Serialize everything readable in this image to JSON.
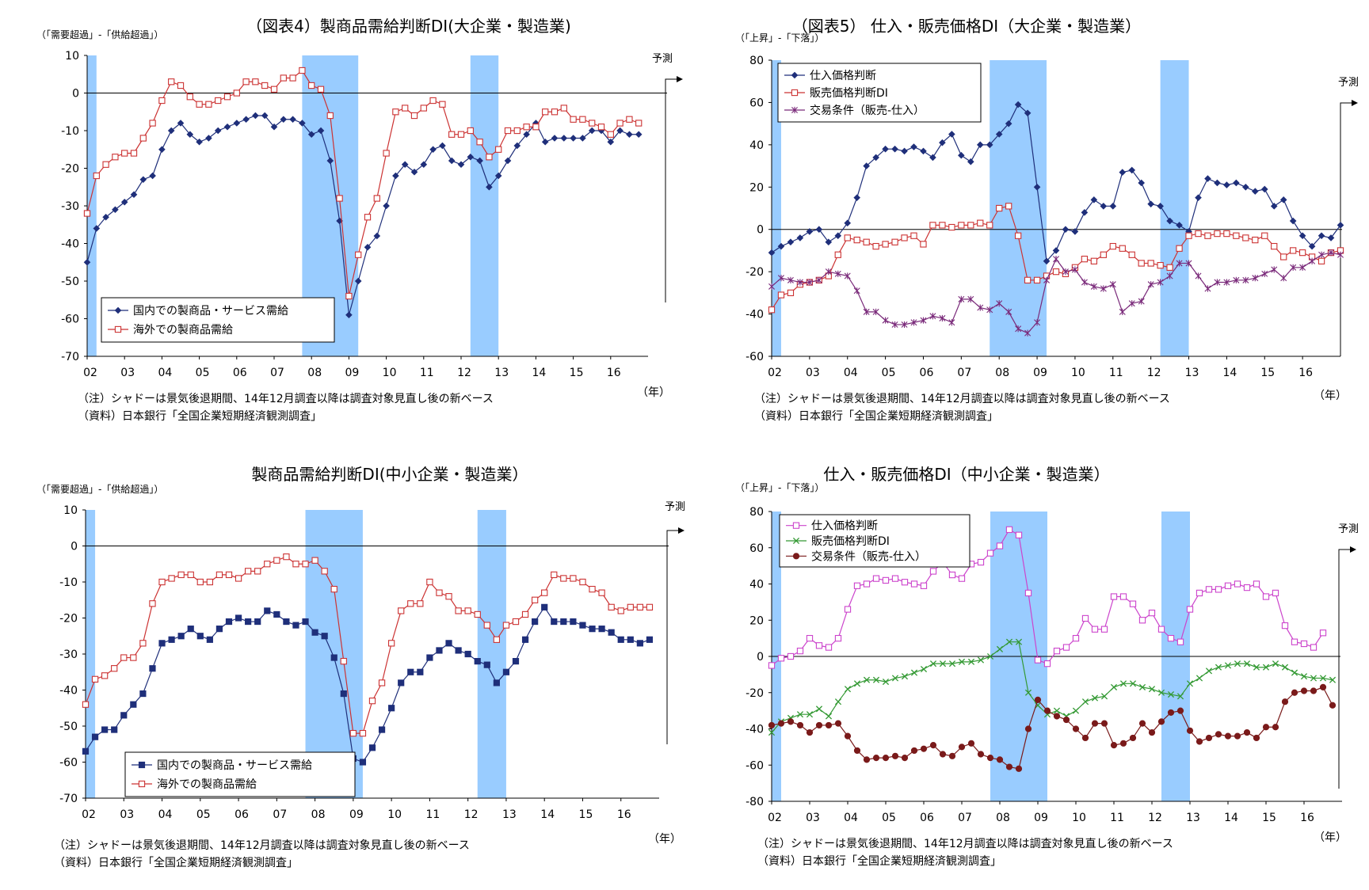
{
  "common": {
    "x_tick_labels": [
      "02",
      "03",
      "04",
      "05",
      "06",
      "07",
      "08",
      "09",
      "10",
      "11",
      "12",
      "13",
      "14",
      "15",
      "16"
    ],
    "year_unit": "（年）",
    "forecast_label": "予測",
    "note": "（注）シャドーは景気後退期間、14年12月調査以降は調査対象見直し後の新ベース",
    "source": "（資料）日本銀行「全国企業短期経済観測調査」",
    "shade_color": "#99ccff",
    "recession_periods": [
      [
        2002.0,
        2002.25
      ],
      [
        2007.75,
        2009.25
      ],
      [
        2012.25,
        2013.0
      ]
    ]
  },
  "chart_data": [
    {
      "type": "line",
      "title": "（図表4）製商品需給判断DI(大企業・製造業)",
      "ylabel": "（「需要超過」-「供給超過」）",
      "ylim": [
        -70,
        10
      ],
      "yticks": [
        10,
        0,
        -10,
        -20,
        -30,
        -40,
        -50,
        -60,
        -70
      ],
      "x_start": 2002.0,
      "x_step": 0.25,
      "legend_position": "bottom-left",
      "series": [
        {
          "name": "国内での製商品・サービス需給",
          "color": "#1f2f7a",
          "marker": "diamond",
          "values": [
            -45,
            -36,
            -33,
            -31,
            -29,
            -27,
            -23,
            -22,
            -15,
            -10,
            -8,
            -11,
            -13,
            -12,
            -10,
            -9,
            -8,
            -7,
            -6,
            -6,
            -9,
            -7,
            -7,
            -8,
            -11,
            -10,
            -18,
            -34,
            -59,
            -50,
            -41,
            -38,
            -30,
            -22,
            -19,
            -21,
            -19,
            -15,
            -14,
            -18,
            -19,
            -17,
            -18,
            -25,
            -22,
            -18,
            -14,
            -11,
            -8,
            -13,
            -12,
            -12,
            -12,
            -12,
            -10,
            -10,
            -13,
            -10,
            -11,
            -11
          ]
        },
        {
          "name": "海外での製商品需給",
          "color": "#cc3333",
          "marker": "square-open",
          "values": [
            -32,
            -22,
            -19,
            -17,
            -16,
            -16,
            -12,
            -8,
            -2,
            3,
            2,
            -1,
            -3,
            -3,
            -2,
            -1,
            0,
            3,
            3,
            2,
            1,
            4,
            4,
            6,
            2,
            1,
            -6,
            -28,
            -54,
            -43,
            -33,
            -28,
            -16,
            -5,
            -4,
            -6,
            -4,
            -2,
            -3,
            -11,
            -11,
            -10,
            -13,
            -17,
            -15,
            -10,
            -10,
            -9,
            -9,
            -5,
            -5,
            -4,
            -7,
            -7,
            -8,
            -9,
            -11,
            -8,
            -7,
            -8
          ]
        }
      ]
    },
    {
      "type": "line",
      "title": "（図表5） 仕入・販売価格DI（大企業・製造業）",
      "ylabel": "（「上昇」-「下落」）",
      "ylim": [
        -60,
        80
      ],
      "yticks": [
        80,
        60,
        40,
        20,
        0,
        -20,
        -40,
        -60
      ],
      "x_start": 2002.0,
      "x_step": 0.25,
      "legend_position": "top-left",
      "series": [
        {
          "name": "仕入価格判断",
          "color": "#1f2f7a",
          "marker": "diamond",
          "values": [
            -11,
            -8,
            -6,
            -4,
            -1,
            0,
            -6,
            -3,
            3,
            15,
            30,
            34,
            38,
            38,
            37,
            39,
            37,
            34,
            41,
            45,
            35,
            32,
            40,
            40,
            45,
            50,
            59,
            55,
            20,
            -15,
            -10,
            0,
            -1,
            8,
            14,
            11,
            11,
            27,
            28,
            22,
            12,
            11,
            4,
            2,
            -1,
            15,
            24,
            22,
            21,
            22,
            20,
            18,
            19,
            11,
            14,
            4,
            -3,
            -8,
            -3,
            -4,
            2
          ]
        },
        {
          "name": "販売価格判断DI",
          "color": "#cc3333",
          "marker": "square-open",
          "values": [
            -38,
            -31,
            -30,
            -26,
            -25,
            -24,
            -22,
            -12,
            -4,
            -5,
            -6,
            -8,
            -7,
            -6,
            -4,
            -3,
            -7,
            2,
            2,
            1,
            2,
            2,
            3,
            2,
            10,
            11,
            -3,
            -24,
            -24,
            -22,
            -20,
            -21,
            -18,
            -14,
            -15,
            -12,
            -8,
            -9,
            -12,
            -16,
            -16,
            -17,
            -18,
            -9,
            -3,
            -2,
            -3,
            -2,
            -2,
            -3,
            -4,
            -5,
            -3,
            -8,
            -13,
            -10,
            -11,
            -13,
            -15,
            -11,
            -10
          ]
        },
        {
          "name": "交易条件（販売-仕入）",
          "color": "#7a2a7a",
          "marker": "star",
          "values": [
            -27,
            -23,
            -24,
            -25,
            -25,
            -24,
            -20,
            -21,
            -22,
            -29,
            -39,
            -39,
            -43,
            -45,
            -45,
            -44,
            -43,
            -41,
            -42,
            -44,
            -33,
            -33,
            -37,
            -38,
            -35,
            -39,
            -47,
            -49,
            -44,
            -24,
            -14,
            -20,
            -19,
            -25,
            -27,
            -28,
            -26,
            -39,
            -35,
            -34,
            -26,
            -25,
            -22,
            -16,
            -16,
            -22,
            -28,
            -25,
            -25,
            -24,
            -24,
            -23,
            -21,
            -19,
            -23,
            -18,
            -18,
            -15,
            -12,
            -11,
            -12
          ]
        }
      ]
    },
    {
      "type": "line",
      "title": "製商品需給判断DI(中小企業・製造業）",
      "ylabel": "（「需要超過」-「供給超過」）",
      "ylim": [
        -70,
        10
      ],
      "yticks": [
        10,
        0,
        -10,
        -20,
        -30,
        -40,
        -50,
        -60,
        -70
      ],
      "x_start": 2002.0,
      "x_step": 0.25,
      "legend_position": "bottom-left",
      "series": [
        {
          "name": "国内での製商品・サービス需給",
          "color": "#1f2f7a",
          "marker": "square",
          "values": [
            -57,
            -53,
            -51,
            -51,
            -47,
            -44,
            -41,
            -34,
            -27,
            -26,
            -25,
            -23,
            -25,
            -26,
            -23,
            -21,
            -20,
            -21,
            -21,
            -18,
            -19,
            -21,
            -22,
            -21,
            -24,
            -25,
            -31,
            -41,
            -59,
            -60,
            -56,
            -51,
            -45,
            -38,
            -35,
            -35,
            -31,
            -29,
            -27,
            -29,
            -30,
            -32,
            -33,
            -38,
            -35,
            -32,
            -26,
            -21,
            -17,
            -21,
            -21,
            -21,
            -22,
            -23,
            -23,
            -24,
            -26,
            -26,
            -27,
            -26
          ]
        },
        {
          "name": "海外での製商品需給",
          "color": "#cc3333",
          "marker": "square-open",
          "values": [
            -44,
            -37,
            -36,
            -34,
            -31,
            -31,
            -27,
            -16,
            -10,
            -9,
            -8,
            -8,
            -10,
            -10,
            -8,
            -8,
            -9,
            -7,
            -7,
            -5,
            -4,
            -3,
            -5,
            -5,
            -4,
            -7,
            -12,
            -32,
            -52,
            -52,
            -43,
            -38,
            -27,
            -18,
            -16,
            -16,
            -10,
            -13,
            -14,
            -18,
            -18,
            -19,
            -22,
            -26,
            -22,
            -21,
            -19,
            -15,
            -13,
            -8,
            -9,
            -9,
            -10,
            -12,
            -13,
            -17,
            -18,
            -17,
            -17,
            -17
          ]
        }
      ]
    },
    {
      "type": "line",
      "title": "仕入・販売価格DI（中小企業・製造業）",
      "ylabel": "（「上昇」-「下落」）",
      "ylim": [
        -80,
        80
      ],
      "yticks": [
        80,
        60,
        40,
        20,
        0,
        -20,
        -40,
        -60,
        -80
      ],
      "x_start": 2002.0,
      "x_step": 0.25,
      "legend_position": "top-left",
      "series": [
        {
          "name": "仕入価格判断",
          "color": "#cc44cc",
          "marker": "square-open",
          "values": [
            -5,
            -1,
            0,
            3,
            10,
            6,
            5,
            10,
            26,
            39,
            40,
            43,
            42,
            43,
            41,
            40,
            39,
            47,
            52,
            45,
            43,
            51,
            52,
            57,
            61,
            70,
            67,
            35,
            -2,
            -4,
            3,
            5,
            10,
            21,
            15,
            15,
            33,
            33,
            29,
            20,
            24,
            15,
            10,
            8,
            26,
            35,
            37,
            37,
            39,
            40,
            38,
            40,
            33,
            35,
            17,
            8,
            7,
            5,
            13
          ]
        },
        {
          "name": "販売価格判断DI",
          "color": "#339933",
          "marker": "x",
          "values": [
            -42,
            -36,
            -34,
            -32,
            -32,
            -29,
            -33,
            -25,
            -18,
            -15,
            -13,
            -13,
            -14,
            -12,
            -11,
            -9,
            -7,
            -4,
            -4,
            -4,
            -3,
            -3,
            -2,
            0,
            4,
            8,
            8,
            -20,
            -27,
            -32,
            -30,
            -33,
            -30,
            -25,
            -23,
            -22,
            -17,
            -15,
            -15,
            -17,
            -18,
            -20,
            -21,
            -22,
            -15,
            -12,
            -8,
            -6,
            -5,
            -4,
            -4,
            -6,
            -6,
            -4,
            -6,
            -9,
            -11,
            -12,
            -12,
            -13
          ]
        },
        {
          "name": "交易条件（販売-仕入）",
          "color": "#7a1a1a",
          "marker": "dot",
          "values": [
            -38,
            -37,
            -36,
            -38,
            -42,
            -38,
            -38,
            -37,
            -44,
            -52,
            -57,
            -56,
            -56,
            -55,
            -56,
            -52,
            -51,
            -49,
            -54,
            -55,
            -50,
            -48,
            -54,
            -56,
            -57,
            -61,
            -62,
            -40,
            -24,
            -30,
            -33,
            -35,
            -40,
            -45,
            -37,
            -37,
            -49,
            -48,
            -45,
            -37,
            -42,
            -36,
            -31,
            -30,
            -41,
            -47,
            -45,
            -43,
            -44,
            -44,
            -42,
            -45,
            -39,
            -39,
            -25,
            -20,
            -19,
            -19,
            -17,
            -27
          ]
        }
      ]
    }
  ]
}
